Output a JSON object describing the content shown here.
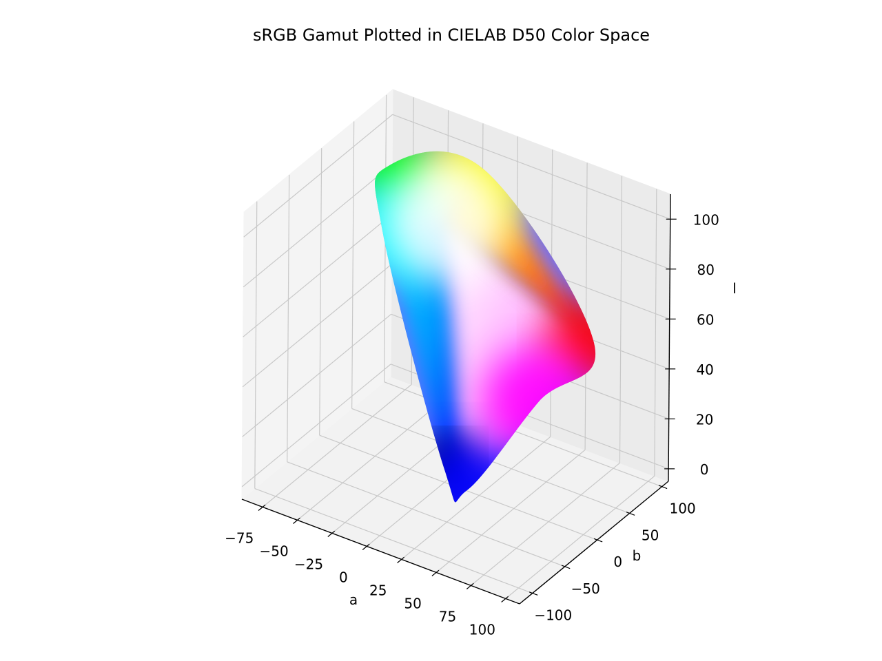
{
  "chart_data": {
    "type": "scatter",
    "projection": "3d",
    "title": "sRGB Gamut Plotted in CIELAB D50 Color Space",
    "xlabel": "a",
    "ylabel": "b",
    "zlabel": "l",
    "xlim": [
      -90,
      110
    ],
    "ylim": [
      -120,
      110
    ],
    "zlim": [
      -5,
      110
    ],
    "xticks": [
      -75,
      -50,
      -25,
      0,
      25,
      50,
      75,
      100
    ],
    "yticks": [
      -100,
      -50,
      0,
      50,
      100
    ],
    "zticks": [
      0,
      20,
      40,
      60,
      80,
      100
    ],
    "xtick_labels": [
      "−75",
      "−50",
      "−25",
      "0",
      "25",
      "50",
      "75",
      "100"
    ],
    "ytick_labels": [
      "−100",
      "−50",
      "0",
      "50",
      "100"
    ],
    "ztick_labels": [
      "0",
      "20",
      "40",
      "60",
      "80",
      "100"
    ],
    "grid": true,
    "vertices": [
      {
        "color_name": "black",
        "rgb": [
          0,
          0,
          0
        ],
        "a": 0,
        "b": 0,
        "l": 0
      },
      {
        "color_name": "red",
        "rgb": [
          255,
          0,
          0
        ],
        "a": 78,
        "b": 62,
        "l": 54
      },
      {
        "color_name": "green",
        "rgb": [
          0,
          255,
          0
        ],
        "a": -79,
        "b": 81,
        "l": 88
      },
      {
        "color_name": "blue",
        "rgb": [
          0,
          0,
          255
        ],
        "a": 68,
        "b": -112,
        "l": 30
      },
      {
        "color_name": "yellow",
        "rgb": [
          255,
          255,
          0
        ],
        "a": -16,
        "b": 93,
        "l": 97
      },
      {
        "color_name": "cyan",
        "rgb": [
          0,
          255,
          255
        ],
        "a": -39,
        "b": -15,
        "l": 91
      },
      {
        "color_name": "magenta",
        "rgb": [
          255,
          0,
          255
        ],
        "a": 95,
        "b": -60,
        "l": 60
      },
      {
        "color_name": "white",
        "rgb": [
          255,
          255,
          255
        ],
        "a": 0,
        "b": 0,
        "l": 100
      }
    ]
  }
}
